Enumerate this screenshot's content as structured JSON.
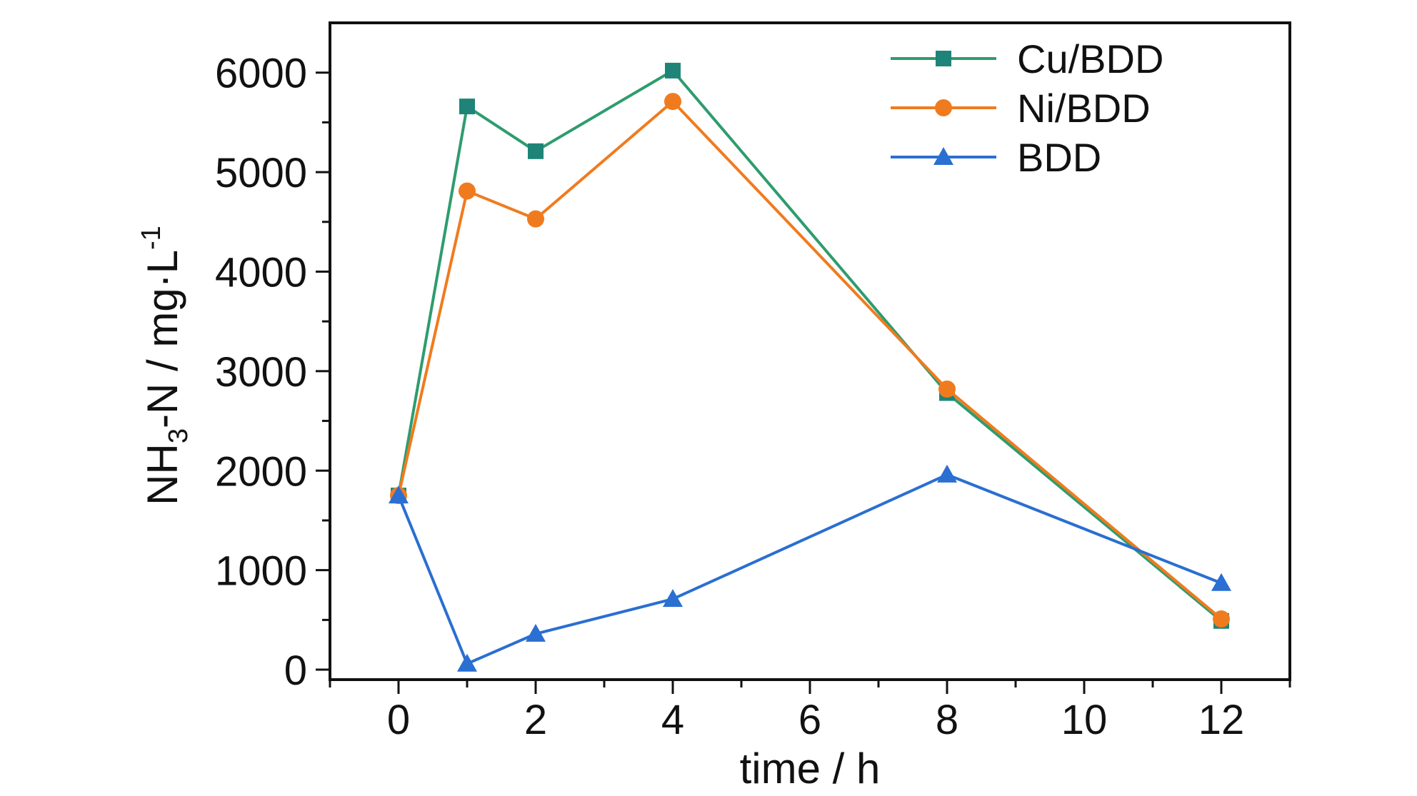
{
  "colors": {
    "cu_bdd": "#2e9c6e",
    "ni_bdd": "#f07b1e",
    "bdd": "#2a6fd1",
    "cu_marker": "#1e8478",
    "axis": "#111111"
  },
  "chart_data": {
    "type": "line",
    "title": "",
    "xlabel": "time / h",
    "ylabel_main": "NH",
    "ylabel_sub": "3",
    "ylabel_mid": "-N / mg·L",
    "ylabel_sup": "-1",
    "xlim": [
      -1,
      13
    ],
    "ylim": [
      -100,
      6500
    ],
    "x_ticks": [
      0,
      2,
      4,
      6,
      8,
      10,
      12
    ],
    "x_tick_labels": [
      "0",
      "2",
      "4",
      "6",
      "8",
      "10",
      "12"
    ],
    "y_ticks": [
      0,
      1000,
      2000,
      3000,
      4000,
      5000,
      6000
    ],
    "y_tick_labels": [
      "0",
      "1000",
      "2000",
      "3000",
      "4000",
      "5000",
      "6000"
    ],
    "grid": false,
    "legend_position": "top-right",
    "x": [
      0,
      1,
      2,
      4,
      8,
      12
    ],
    "series": [
      {
        "name": "Cu/BDD",
        "marker": "square",
        "values": [
          1750,
          5660,
          5210,
          6020,
          2780,
          490
        ]
      },
      {
        "name": "Ni/BDD",
        "marker": "circle",
        "values": [
          1750,
          4810,
          4530,
          5710,
          2820,
          510
        ]
      },
      {
        "name": "BDD",
        "marker": "triangle",
        "values": [
          1750,
          60,
          360,
          710,
          1960,
          870
        ]
      }
    ]
  }
}
